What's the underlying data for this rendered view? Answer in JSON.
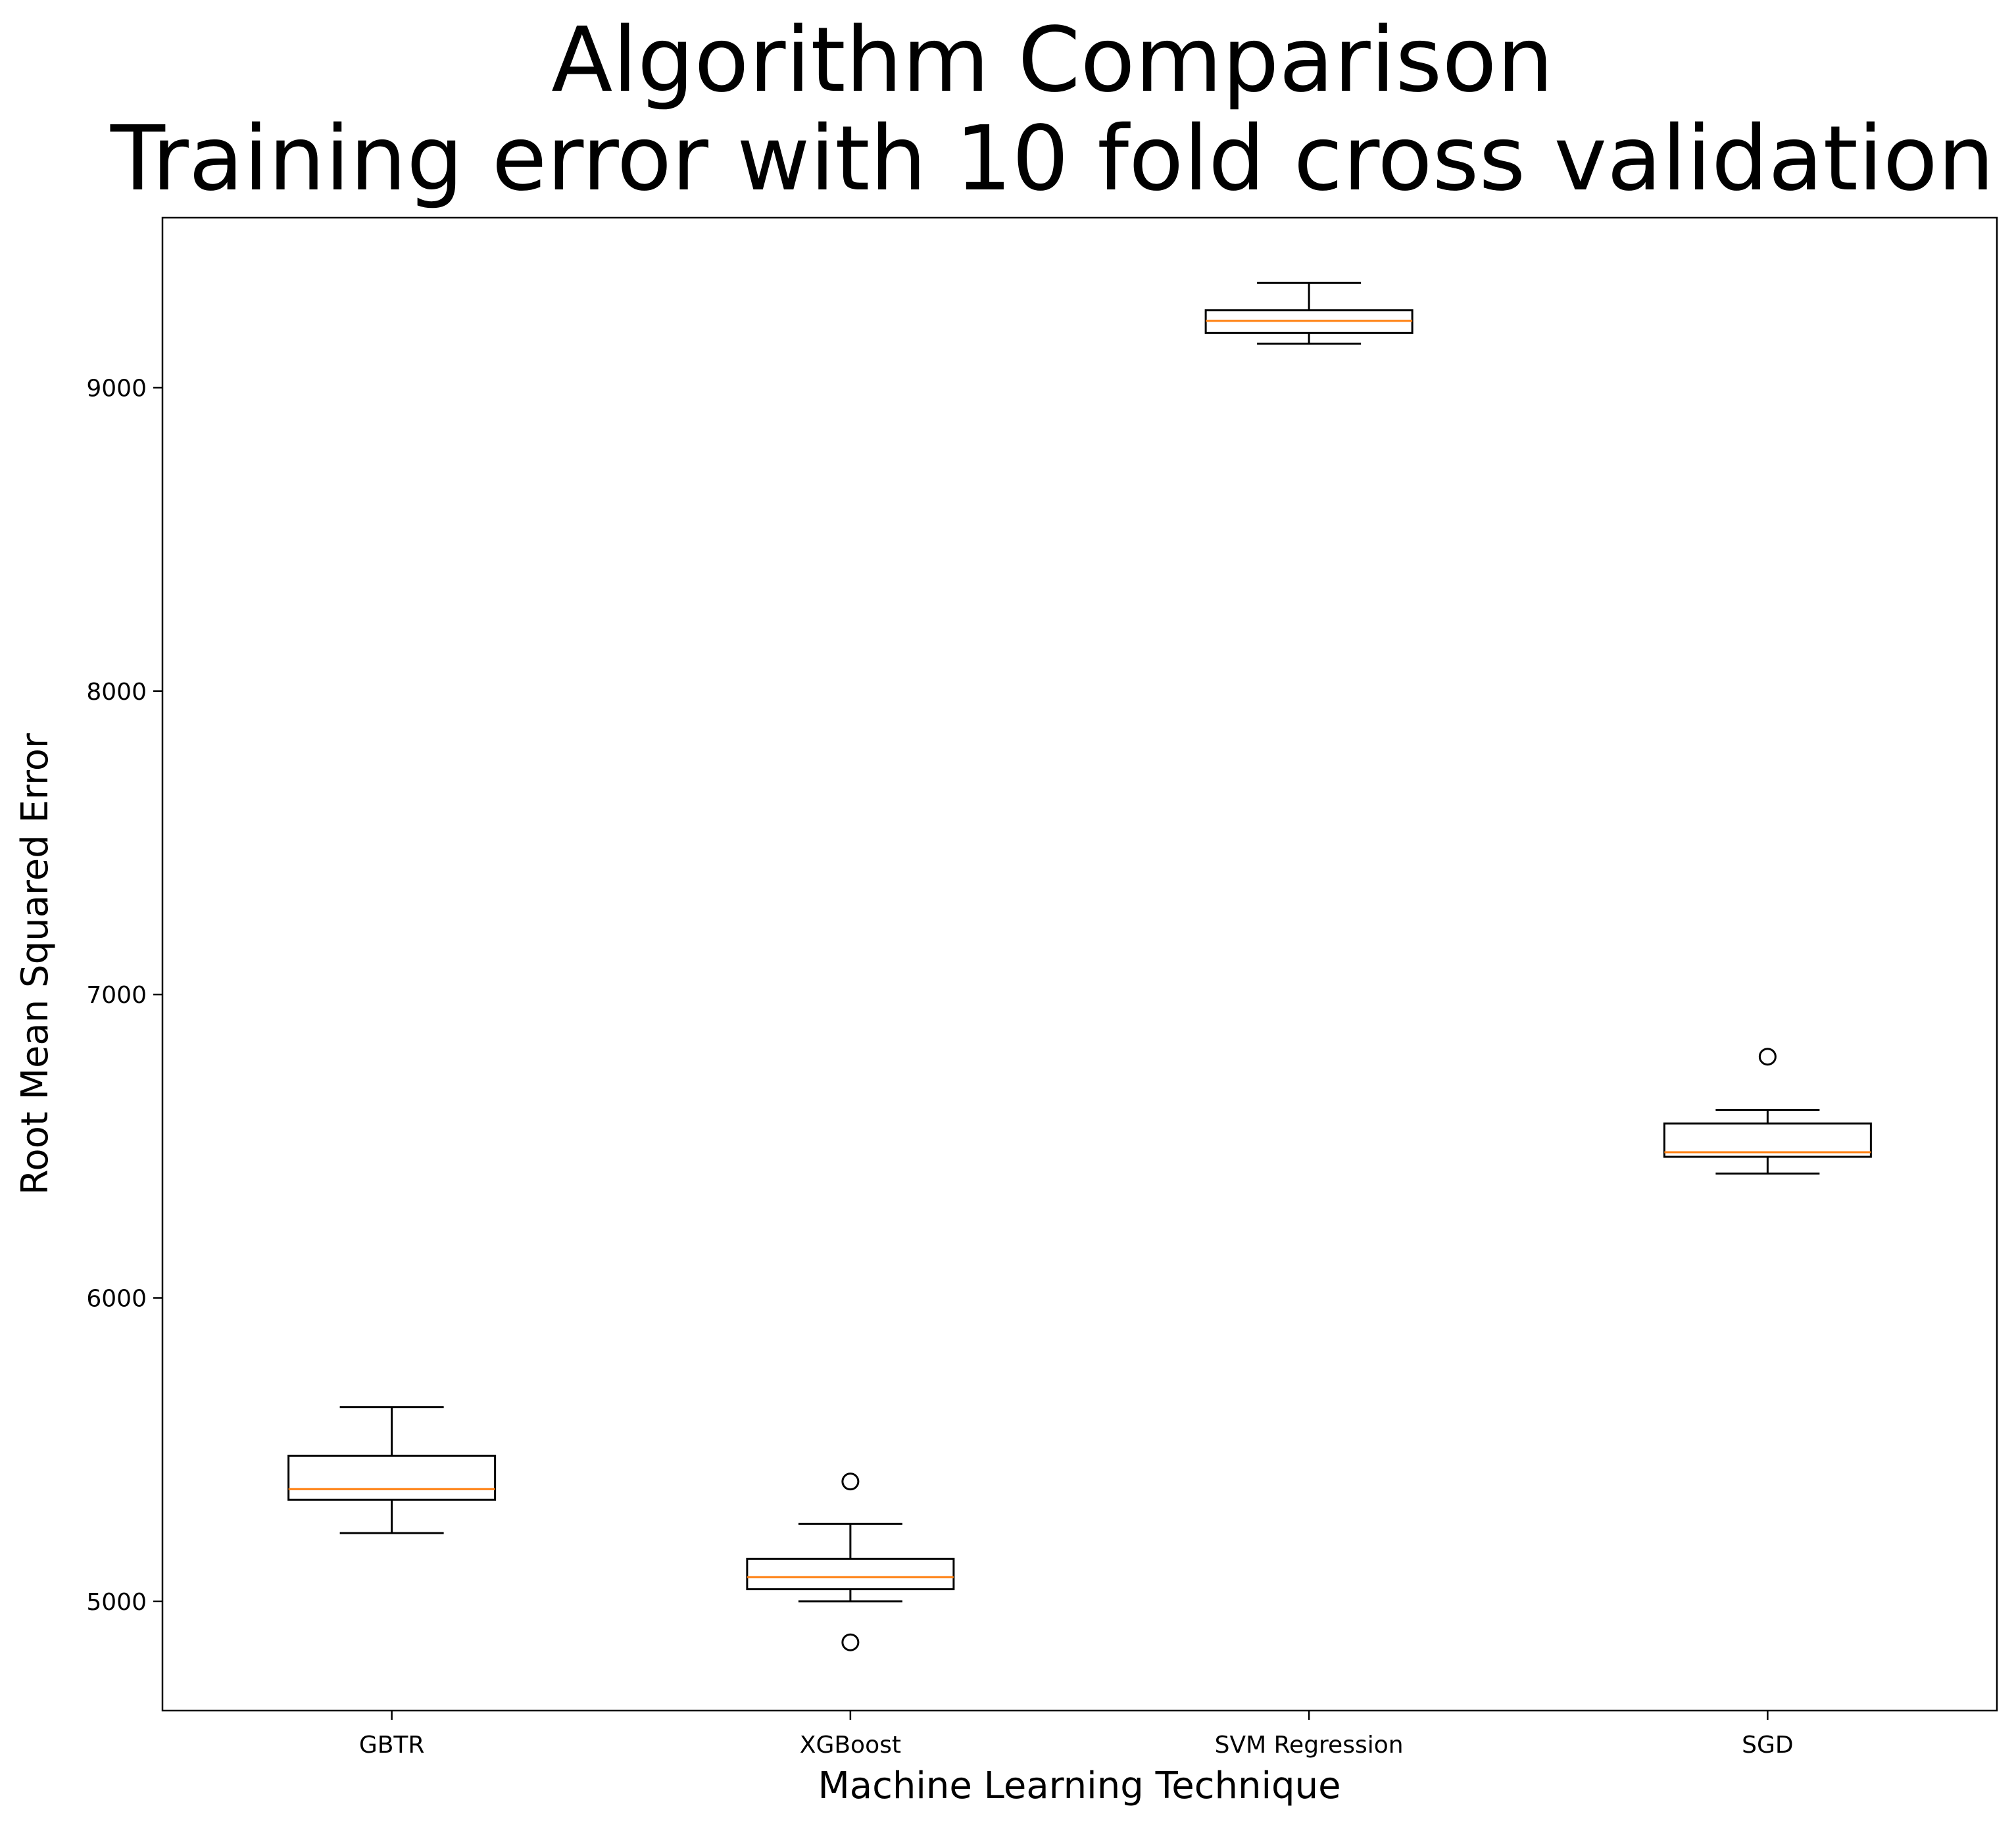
{
  "chart_data": {
    "type": "boxplot",
    "title": [
      "Algorithm Comparison",
      "Training error with 10 fold cross validation"
    ],
    "xlabel": "Machine Learning Technique",
    "ylabel": "Root Mean Squared Error",
    "categories": [
      "GBTR",
      "XGBoost",
      "SVM Regression",
      "SGD"
    ],
    "ylim": [
      4640,
      9560
    ],
    "yticks": [
      5000,
      6000,
      7000,
      8000,
      9000
    ],
    "grid": false,
    "legend": "none",
    "box_color": "#000000",
    "median_color": "#ff7f0e",
    "boxes": [
      {
        "label": "GBTR",
        "whisker_low": 5225,
        "q1": 5335,
        "median": 5370,
        "q3": 5480,
        "whisker_high": 5640,
        "outliers": []
      },
      {
        "label": "XGBoost",
        "whisker_low": 5000,
        "q1": 5040,
        "median": 5080,
        "q3": 5140,
        "whisker_high": 5255,
        "outliers": [
          5395,
          4865
        ]
      },
      {
        "label": "SVM Regression",
        "whisker_low": 9145,
        "q1": 9180,
        "median": 9220,
        "q3": 9255,
        "whisker_high": 9345,
        "outliers": []
      },
      {
        "label": "SGD",
        "whisker_low": 6410,
        "q1": 6465,
        "median": 6480,
        "q3": 6575,
        "whisker_high": 6620,
        "outliers": [
          6795
        ]
      }
    ]
  }
}
